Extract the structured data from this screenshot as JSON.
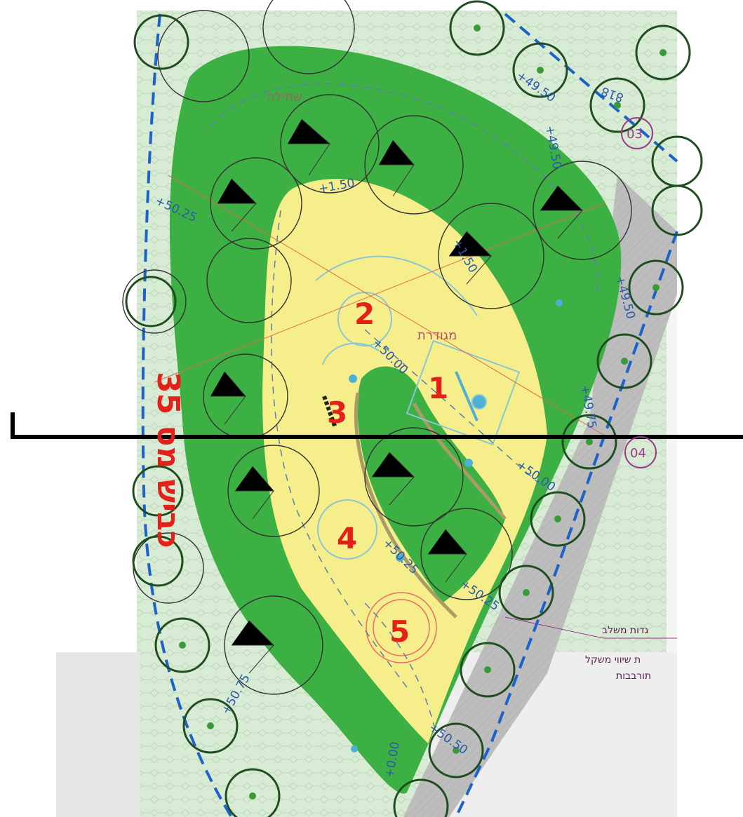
{
  "map": {
    "zones": [
      {
        "id": "zone-1",
        "label": "1"
      },
      {
        "id": "zone-2",
        "label": "2"
      },
      {
        "id": "zone-3",
        "label": "3"
      },
      {
        "id": "zone-4",
        "label": "4"
      },
      {
        "id": "zone-5",
        "label": "5"
      }
    ],
    "road_label": "כביש מס 35",
    "plot_tags": [
      "03",
      "04"
    ],
    "elevations": [
      "+49.50",
      "+49.50",
      "+1.50",
      "+50.25",
      "+1.50",
      "+49.50",
      "+50.00",
      "+49.75",
      "+50.00",
      "+50.25",
      "+50.25",
      "+50.50",
      "+0.00",
      "+50.75",
      "818"
    ],
    "area_labels": [
      "מגודרת",
      "שתילה"
    ],
    "legend": [
      "גדות משלב",
      "ת שיווי משקל",
      "תורבבות"
    ],
    "colors": {
      "lawn": "#3cb043",
      "sand": "#f6ee8a",
      "bg": "#d8ebd4",
      "grey_strip": "#bdbdbd",
      "number_red": "#e32119",
      "dash_blue": "#1d62c9"
    }
  }
}
